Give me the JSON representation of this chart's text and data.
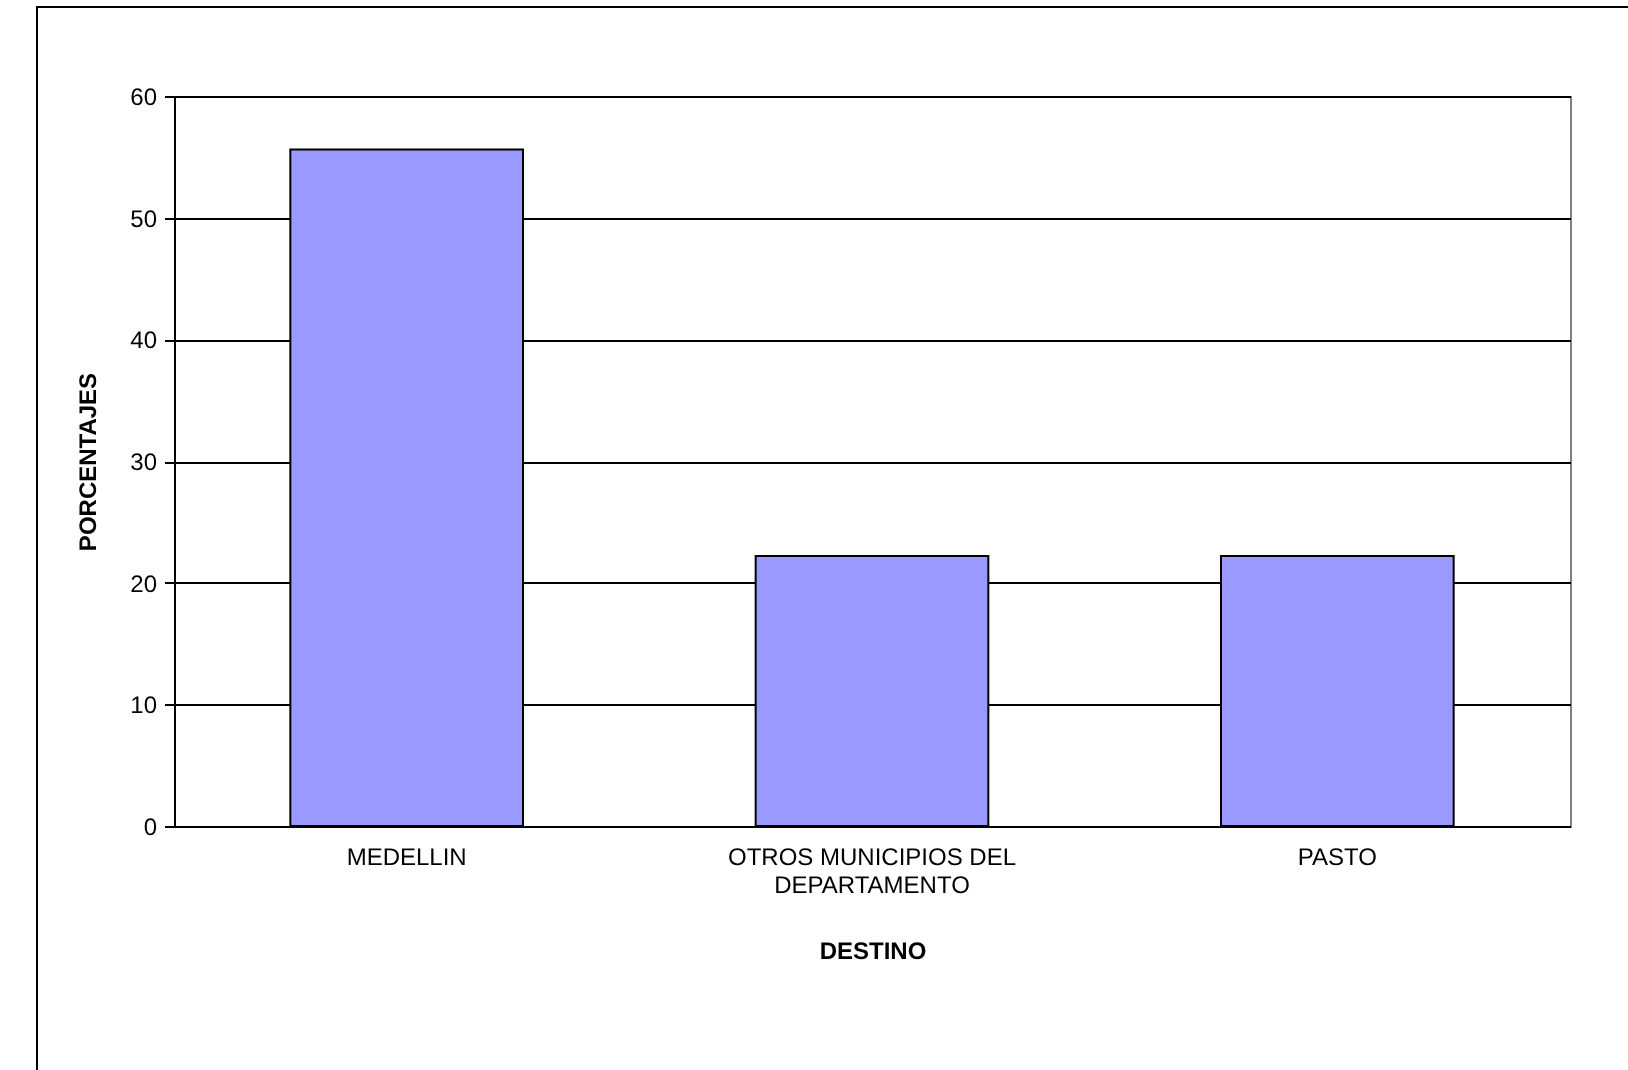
{
  "chart_data": {
    "type": "bar",
    "xlabel": "DESTINO",
    "ylabel": "PORCENTAJES",
    "categories": [
      "MEDELLIN",
      "OTROS MUNICIPIOS DEL DEPARTAMENTO",
      "PASTO"
    ],
    "values": [
      55.6,
      22.2,
      22.2
    ],
    "color": "#9999ff",
    "ylim": [
      0,
      60
    ],
    "yticks": [
      0,
      10,
      20,
      30,
      40,
      50,
      60
    ],
    "grid": "y"
  }
}
